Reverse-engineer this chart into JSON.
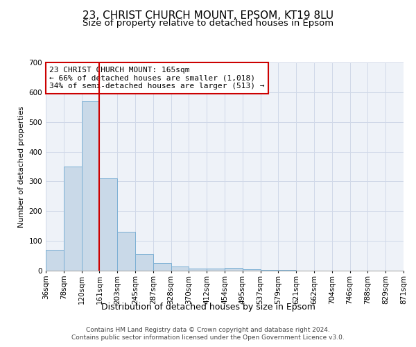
{
  "title1": "23, CHRIST CHURCH MOUNT, EPSOM, KT19 8LU",
  "title2": "Size of property relative to detached houses in Epsom",
  "xlabel": "Distribution of detached houses by size in Epsom",
  "ylabel": "Number of detached properties",
  "bar_values": [
    70,
    350,
    570,
    310,
    130,
    55,
    25,
    13,
    7,
    8,
    10,
    5,
    3,
    2,
    1,
    1,
    1,
    0,
    0,
    0
  ],
  "bin_labels": [
    "36sqm",
    "78sqm",
    "120sqm",
    "161sqm",
    "203sqm",
    "245sqm",
    "287sqm",
    "328sqm",
    "370sqm",
    "412sqm",
    "454sqm",
    "495sqm",
    "537sqm",
    "579sqm",
    "621sqm",
    "662sqm",
    "704sqm",
    "746sqm",
    "788sqm",
    "829sqm",
    "871sqm"
  ],
  "bar_color": "#c9d9e8",
  "bar_edgecolor": "#7bafd4",
  "vline_x": 3,
  "vline_color": "#cc0000",
  "annotation_text": "23 CHRIST CHURCH MOUNT: 165sqm\n← 66% of detached houses are smaller (1,018)\n34% of semi-detached houses are larger (513) →",
  "annotation_box_edgecolor": "#cc0000",
  "ylim": [
    0,
    700
  ],
  "yticks": [
    0,
    100,
    200,
    300,
    400,
    500,
    600,
    700
  ],
  "grid_color": "#d0d8e8",
  "background_color": "#eef2f8",
  "footer1": "Contains HM Land Registry data © Crown copyright and database right 2024.",
  "footer2": "Contains public sector information licensed under the Open Government Licence v3.0.",
  "title1_fontsize": 11,
  "title2_fontsize": 9.5,
  "xlabel_fontsize": 9,
  "ylabel_fontsize": 8,
  "tick_fontsize": 7.5,
  "annotation_fontsize": 8,
  "footer_fontsize": 6.5
}
